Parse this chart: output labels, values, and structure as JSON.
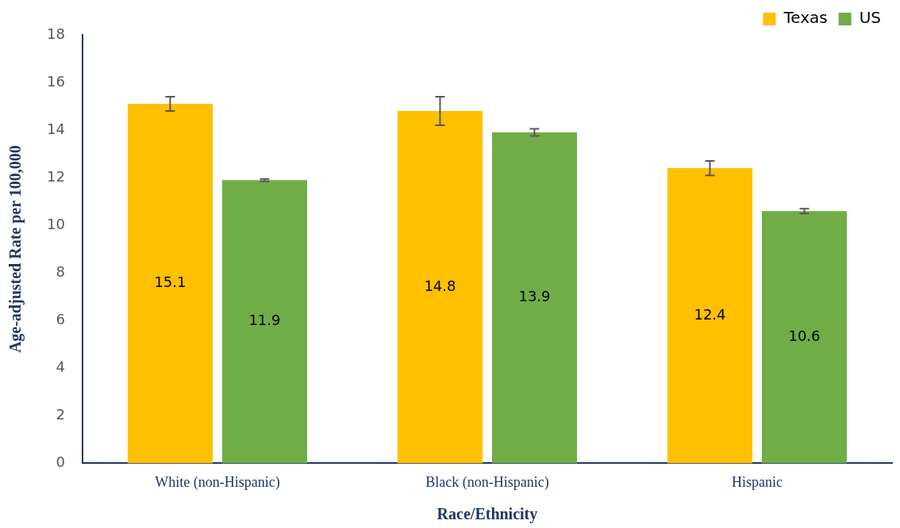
{
  "chart_data": {
    "type": "bar",
    "xlabel": "Race/Ethnicity",
    "ylabel": "Age-adjusted Rate per 100,000",
    "categories": [
      "White (non-Hispanic)",
      "Black (non-Hispanic)",
      "Hispanic"
    ],
    "series": [
      {
        "name": "Texas",
        "color": "#ffc000",
        "values": [
          15.1,
          14.8,
          12.4
        ],
        "errors": [
          0.3,
          0.6,
          0.3
        ]
      },
      {
        "name": "US",
        "color": "#70ad47",
        "values": [
          11.9,
          13.9,
          10.6
        ],
        "errors": [
          0.05,
          0.15,
          0.1
        ]
      }
    ],
    "data_labels": true,
    "ylim": [
      0,
      18
    ],
    "yticks": [
      0,
      2,
      4,
      6,
      8,
      10,
      12,
      14,
      16,
      18
    ],
    "grid": false,
    "legend": "top right"
  }
}
